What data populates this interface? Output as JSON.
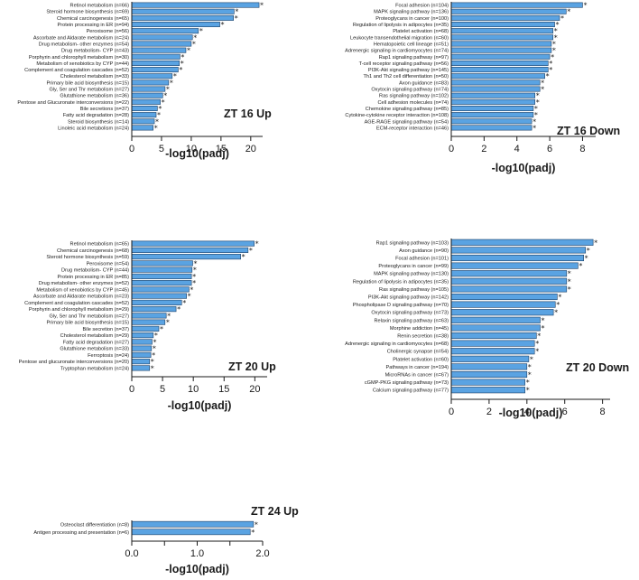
{
  "colors": {
    "bar_fill": "#5aa3e2",
    "bar_stroke": "#1b3f66",
    "axis": "#1a1a1a",
    "text": "#1a1a1a"
  },
  "chart_data": [
    {
      "type": "bar",
      "orientation": "horizontal",
      "title": "ZT 16 Up",
      "xlabel": "-log10(padj)",
      "xlim": [
        0,
        22
      ],
      "xticks": [
        0,
        5,
        10,
        15,
        20
      ],
      "xtick_labels": [
        "0",
        "5",
        "10",
        "15",
        "20"
      ],
      "significance_marker": "*",
      "categories": [
        "Retinol metabolism (n=66)",
        "Steroid hormone biosynthesis (n=69)",
        "Chemical carcinogenesis (n=65)",
        "Protein processing in ER (n=94)",
        "Peroxisome (n=56)",
        "Ascorbate and Aldarate metabolism (n=24)",
        "Drug metabolism- other enzymes (n=54)",
        "Drug metabolism- CYP (n=43)",
        "Porphyrin and chlorophyll metabolism (n=30)",
        "Metabolism of xenobiotics by CYP (n=44)",
        "Complement and coagulation cascades (n=52)",
        "Cholesterol metabolism (n=33)",
        "Primary bile acid biosynthesis (n=15)",
        "Gly, Ser and Thr metabolism (n=27)",
        "Glutathione metabolism (n=36)",
        "Pentose and Glucuronate interconversions (n=22)",
        "Bile secretions (n=37)",
        "Fatty acid degradation (n=28)",
        "Steroid biosynthesis (n=14)",
        "Linoleic acid metabolism (n=24)"
      ],
      "values": [
        21.4,
        17.2,
        17.1,
        14.8,
        11.2,
        10.2,
        10.0,
        9.1,
        8.1,
        8.0,
        7.8,
        6.8,
        6.2,
        5.6,
        5.2,
        4.8,
        4.3,
        4.1,
        3.8,
        3.6
      ]
    },
    {
      "type": "bar",
      "orientation": "horizontal",
      "title": "ZT 16 Down",
      "xlabel": "-log10(padj)",
      "xlim": [
        0,
        8.8
      ],
      "xticks": [
        0,
        2,
        4,
        6,
        8
      ],
      "xtick_labels": [
        "0",
        "2",
        "4",
        "6",
        "8"
      ],
      "significance_marker": "*",
      "categories": [
        "Focal adhesion (n=104)",
        "MAPK signaling pathway (n=136)",
        "Proteoglycans in cancer (n=100)",
        "Regulation of lipolysis in adipocytes (n=35)",
        "Platelet activation (n=68)",
        "Leukocyte transendothelial migration (n=60)",
        "Hematopoietic cell lineage (n=51)",
        "Adrenergic signaling in cardiomyocytes (n=74)",
        "Rap1 signaling pathway (n=97)",
        "T-cell receptor signaling pathway (n=56)",
        "PI3K-Akt signaling pathway (n=145)",
        "Th1 and Th2 cell differentiation (n=50)",
        "Axon guidance (n=83)",
        "Oxytocin signaling pathway (n=74)",
        "Ras signaling pathway (n=102)",
        "Cell adhesion molecules (n=74)",
        "Chemokine signaling pathway (n=85)",
        "Cytokine-cytokine receptor interaction (n=108)",
        "AGE-RAGE signaling pathway (n=54)",
        "ECM-receptor interaction (n=46)"
      ],
      "values": [
        8.0,
        7.0,
        6.6,
        6.3,
        6.2,
        6.2,
        6.1,
        6.1,
        6.0,
        5.9,
        5.9,
        5.7,
        5.4,
        5.4,
        5.1,
        5.1,
        5.0,
        5.0,
        4.9,
        4.9
      ]
    },
    {
      "type": "bar",
      "orientation": "horizontal",
      "title": "ZT 20 Up",
      "xlabel": "-log10(padj)",
      "xlim": [
        0,
        22
      ],
      "xticks": [
        0,
        5,
        10,
        15,
        20
      ],
      "xtick_labels": [
        "0",
        "5",
        "10",
        "15",
        "20"
      ],
      "significance_marker": "*",
      "categories": [
        "Retinol metabolism (n=65)",
        "Chemical carcinogenesis (n=68)",
        "Steroid hormone biosynthesis (n=59)",
        "Peroxisome (n=54)",
        "Drug metabolism- CYP (n=44)",
        "Protein processing in ER (n=85)",
        "Drug metabolism- other enzymes (n=52)",
        "Metabolism of xenobiotics by CYP (n=45)",
        "Ascorbate and Aldarate metabolism (n=23)",
        "Complement and coagulation cascades (n=52)",
        "Porphyrin and chlorophyll metabolism (n=29)",
        "Gly, Ser and Thr metabolism (n=27)",
        "Primary bile acid biosynthesis (n=15)",
        "Bile secretion (n=37)",
        "Cholesterol metabolism (n=29)",
        "Fatty acid degradation (n=27)",
        "Glutathione metabolism (n=33)",
        "Ferroptosis (n=24)",
        "Pentose and glucuronate interconversions (n=20)",
        "Tryptophan metabolism (n=24)"
      ],
      "values": [
        19.9,
        18.9,
        17.7,
        9.9,
        9.8,
        9.7,
        9.7,
        9.3,
        8.9,
        8.1,
        7.2,
        5.6,
        5.4,
        4.4,
        3.5,
        3.3,
        3.2,
        3.1,
        2.9,
        2.9
      ]
    },
    {
      "type": "bar",
      "orientation": "horizontal",
      "title": "ZT 20 Down",
      "xlabel": "-log10(padj)",
      "xlim": [
        0,
        8.4
      ],
      "xticks": [
        0,
        2,
        4,
        6,
        8
      ],
      "xtick_labels": [
        "0",
        "2",
        "4",
        "6",
        "8"
      ],
      "significance_marker": "*",
      "categories": [
        "Rap1 signaling pathway (n=103)",
        "Axon guidance (n=90)",
        "Focal adhesion (n=101)",
        "Proteoglycans in cancer (n=99)",
        "MAPK signaling pathway (n=130)",
        "Regulation of lipolysis in adipocytes (n=35)",
        "Ras signaling pathway (n=105)",
        "PI3K-Akt signaling pathway (n=142)",
        "Phospholipase D signaling pathway (n=70)",
        "Oxytocin signaling pathway (n=73)",
        "Relaxin signaling pathway (n=63)",
        "Morphine addiction (n=45)",
        "Renin secretion (n=38)",
        "Adrenergic signaling in cardiomyocytes (n=68)",
        "Cholinergic synapse (n=54)",
        "Platelet activation (n=60)",
        "Pathways in cancer (n=194)",
        "MicroRNAs in cancer (n=67)",
        "cGMP-PKG signaling pathway (n=73)",
        "Calcium signaling pathway (n=77)"
      ],
      "values": [
        7.5,
        7.1,
        7.0,
        6.7,
        6.1,
        6.1,
        6.1,
        5.6,
        5.5,
        5.4,
        4.7,
        4.7,
        4.5,
        4.4,
        4.4,
        4.1,
        4.0,
        4.0,
        3.9,
        3.9
      ]
    },
    {
      "type": "bar",
      "orientation": "horizontal",
      "title": "ZT 24 Up",
      "xlabel": "-log10(padj)",
      "xlim": [
        0,
        2.0
      ],
      "xticks": [
        0,
        0.5,
        1.0,
        1.5,
        2.0
      ],
      "xtick_labels": [
        "0.0",
        "",
        "1.0",
        "",
        "2.0"
      ],
      "significance_marker": "*",
      "categories": [
        "Osteoclast differentiation (n=8)",
        "Antigen processing and presentation (n=6)"
      ],
      "values": [
        1.86,
        1.81
      ]
    }
  ]
}
